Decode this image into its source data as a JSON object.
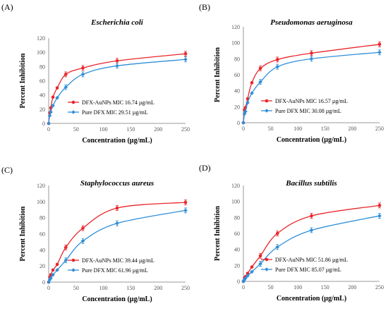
{
  "figure": {
    "x_ticks": [
      "0",
      "50",
      "100",
      "150",
      "200",
      "250"
    ],
    "y_ticks": [
      "0",
      "20",
      "40",
      "60",
      "80",
      "100",
      "120"
    ]
  },
  "colors": {
    "series_1": "#e8262b",
    "series_2": "#2f8fd8"
  },
  "chart_data": [
    {
      "panel": "(A)",
      "type": "line",
      "title": "Escherichia coli",
      "xlabel": "Concentration (µg/mL)",
      "ylabel": "Percent Inhibition",
      "xlim": [
        0,
        250
      ],
      "ylim": [
        0,
        120
      ],
      "grid": false,
      "legend_position": "center-right",
      "series": [
        {
          "name": "DFX-AuNPs MIC 16.74 µg/mL",
          "color": "#e8262b",
          "x": [
            0,
            1.95,
            3.9,
            7.8,
            15.6,
            31.25,
            62.5,
            125,
            250
          ],
          "y": [
            0,
            15,
            22,
            37,
            50,
            69,
            78,
            88,
            98
          ]
        },
        {
          "name": "Pure DFX MIC 29.51 µg/mL",
          "color": "#2f8fd8",
          "x": [
            0,
            1.95,
            3.9,
            7.8,
            15.6,
            31.25,
            62.5,
            125,
            250
          ],
          "y": [
            0,
            11,
            16,
            25,
            36,
            51,
            69,
            81,
            90
          ]
        }
      ]
    },
    {
      "panel": "(B)",
      "type": "line",
      "title": "Pseudomonas aeruginosa",
      "xlabel": "Concentration (µg/mL)",
      "ylabel": "Percent Inhibition",
      "xlim": [
        0,
        250
      ],
      "ylim": [
        0,
        120
      ],
      "grid": false,
      "legend_position": "center-right",
      "series": [
        {
          "name": "DFX-AuNPs MIC 16.57 µg/mL",
          "color": "#e8262b",
          "x": [
            0,
            1.95,
            3.9,
            7.8,
            15.6,
            31.25,
            62.5,
            125,
            250
          ],
          "y": [
            0,
            16,
            19,
            30,
            50,
            68,
            79,
            87,
            98
          ]
        },
        {
          "name": "Pure DFX MIC 30.08 µg/mL",
          "color": "#2f8fd8",
          "x": [
            0,
            1.95,
            3.9,
            7.8,
            15.6,
            31.25,
            62.5,
            125,
            250
          ],
          "y": [
            0,
            11,
            14,
            25,
            37,
            51,
            70,
            80,
            88
          ]
        }
      ]
    },
    {
      "panel": "(C)",
      "type": "line",
      "title": "Staphylococcus aureus",
      "xlabel": "Concentration (µg/mL)",
      "ylabel": "Percent Inhibition",
      "xlim": [
        0,
        250
      ],
      "ylim": [
        0,
        120
      ],
      "grid": false,
      "legend_position": "center-right",
      "series": [
        {
          "name": "DFX-AuNPs MIC 39.44 µg/mL",
          "color": "#e8262b",
          "x": [
            0,
            1.95,
            3.9,
            7.8,
            15.6,
            31.25,
            62.5,
            125,
            250
          ],
          "y": [
            0,
            6,
            9,
            15,
            22,
            43,
            67,
            92,
            99
          ]
        },
        {
          "name": "Pure DFX MIC 61.96 µg/mL",
          "color": "#2f8fd8",
          "x": [
            0,
            1.95,
            3.9,
            7.8,
            15.6,
            31.25,
            62.5,
            125,
            250
          ],
          "y": [
            0,
            3,
            5,
            9,
            15,
            27,
            51,
            73,
            89
          ]
        }
      ]
    },
    {
      "panel": "(D)",
      "type": "line",
      "title": "Bacillus subtilis",
      "xlabel": "Concentration (µg/mL)",
      "ylabel": "Percent Inhibition",
      "xlim": [
        0,
        250
      ],
      "ylim": [
        0,
        120
      ],
      "grid": false,
      "legend_position": "center-right",
      "series": [
        {
          "name": "DFX-AuNPs MIC 51.86 µg/mL",
          "color": "#e8262b",
          "x": [
            0,
            1.95,
            3.9,
            7.8,
            15.6,
            31.25,
            62.5,
            125,
            250
          ],
          "y": [
            0,
            4,
            6,
            10,
            18,
            32,
            60,
            82,
            95
          ]
        },
        {
          "name": "Pure DFX MIC 85.07 µg/mL",
          "color": "#2f8fd8",
          "x": [
            0,
            1.95,
            3.9,
            7.8,
            15.6,
            31.25,
            62.5,
            125,
            250
          ],
          "y": [
            0,
            2,
            4,
            7,
            12,
            22,
            43,
            64,
            82
          ]
        }
      ]
    }
  ]
}
